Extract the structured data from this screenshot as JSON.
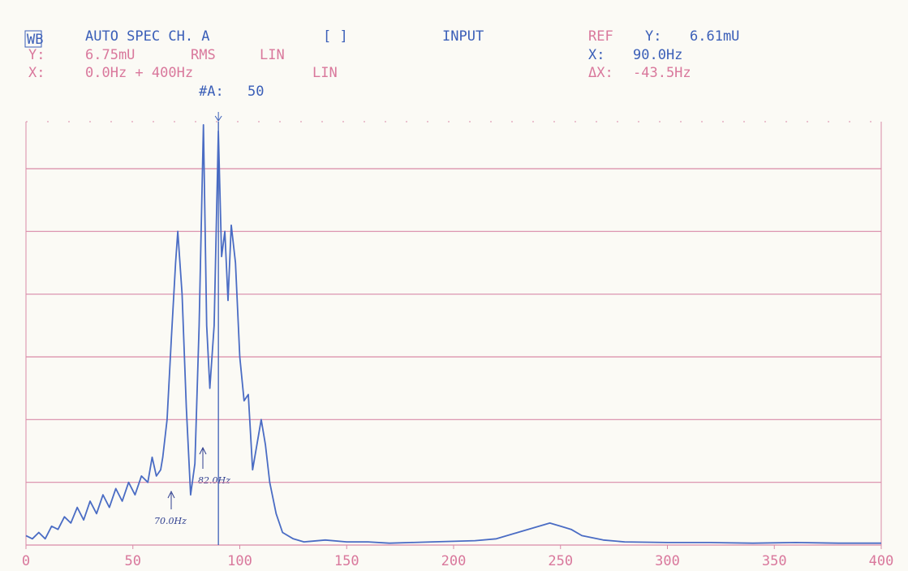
{
  "header": {
    "mode": "WB",
    "function": "AUTO SPEC CH. A",
    "bracket": "[ ]",
    "source": "INPUT",
    "ref": "REF",
    "ref_y_label": "Y:",
    "ref_y": "6.61mU",
    "y_label": "Y:",
    "y_scale": "6.75mU",
    "y_detector": "RMS",
    "y_type": "LIN",
    "x_cursor_label": "X:",
    "x_cursor": {
      "value": 90,
      "label": "90.0Hz"
    },
    "x_label": "X:",
    "x_range": "0.0Hz + 400Hz",
    "x_type": "LIN",
    "dx_label": "ΔX:",
    "dx": "-43.5Hz",
    "avg_label": "#A:",
    "avg": "50"
  },
  "chart_data": {
    "type": "line",
    "color": "#4a6cc4",
    "grid": true,
    "annotations": [
      "70.0Hz",
      "82.0Hz"
    ],
    "x": [
      0,
      3,
      6,
      9,
      12,
      15,
      18,
      21,
      24,
      27,
      30,
      33,
      36,
      39,
      42,
      45,
      48,
      51,
      54,
      57,
      59,
      61,
      63,
      64,
      66,
      68,
      70,
      71,
      73,
      75,
      77,
      79,
      81,
      83,
      84.5,
      86,
      88,
      90,
      91.5,
      93,
      94.5,
      96,
      98,
      100,
      102,
      104,
      106,
      108,
      110,
      112,
      114,
      117,
      120,
      125,
      130,
      140,
      150,
      160,
      170,
      180,
      190,
      200,
      210,
      220,
      230,
      240,
      245,
      250,
      255,
      260,
      270,
      280,
      300,
      320,
      340,
      360,
      380,
      400
    ],
    "values": [
      0.15,
      0.1,
      0.2,
      0.1,
      0.3,
      0.25,
      0.45,
      0.35,
      0.6,
      0.4,
      0.7,
      0.5,
      0.8,
      0.6,
      0.9,
      0.7,
      1.0,
      0.8,
      1.1,
      1.0,
      1.4,
      1.1,
      1.2,
      1.4,
      2.0,
      3.3,
      4.5,
      5.0,
      4.0,
      2.2,
      0.8,
      1.3,
      3.5,
      6.7,
      3.5,
      2.5,
      3.5,
      6.6,
      4.6,
      5.0,
      3.9,
      5.1,
      4.5,
      3.0,
      2.3,
      2.4,
      1.2,
      1.6,
      2.0,
      1.6,
      1.0,
      0.5,
      0.2,
      0.1,
      0.05,
      0.08,
      0.05,
      0.05,
      0.03,
      0.04,
      0.05,
      0.06,
      0.07,
      0.1,
      0.2,
      0.3,
      0.35,
      0.3,
      0.25,
      0.15,
      0.08,
      0.05,
      0.04,
      0.04,
      0.03,
      0.04,
      0.03,
      0.03
    ],
    "xlim": [
      0,
      400
    ],
    "xticks": [
      0,
      50,
      100,
      150,
      200,
      250,
      300,
      350,
      400
    ],
    "ylim": [
      0,
      6.75
    ],
    "yticks": [
      0,
      1,
      2,
      3,
      4,
      5,
      6
    ]
  }
}
